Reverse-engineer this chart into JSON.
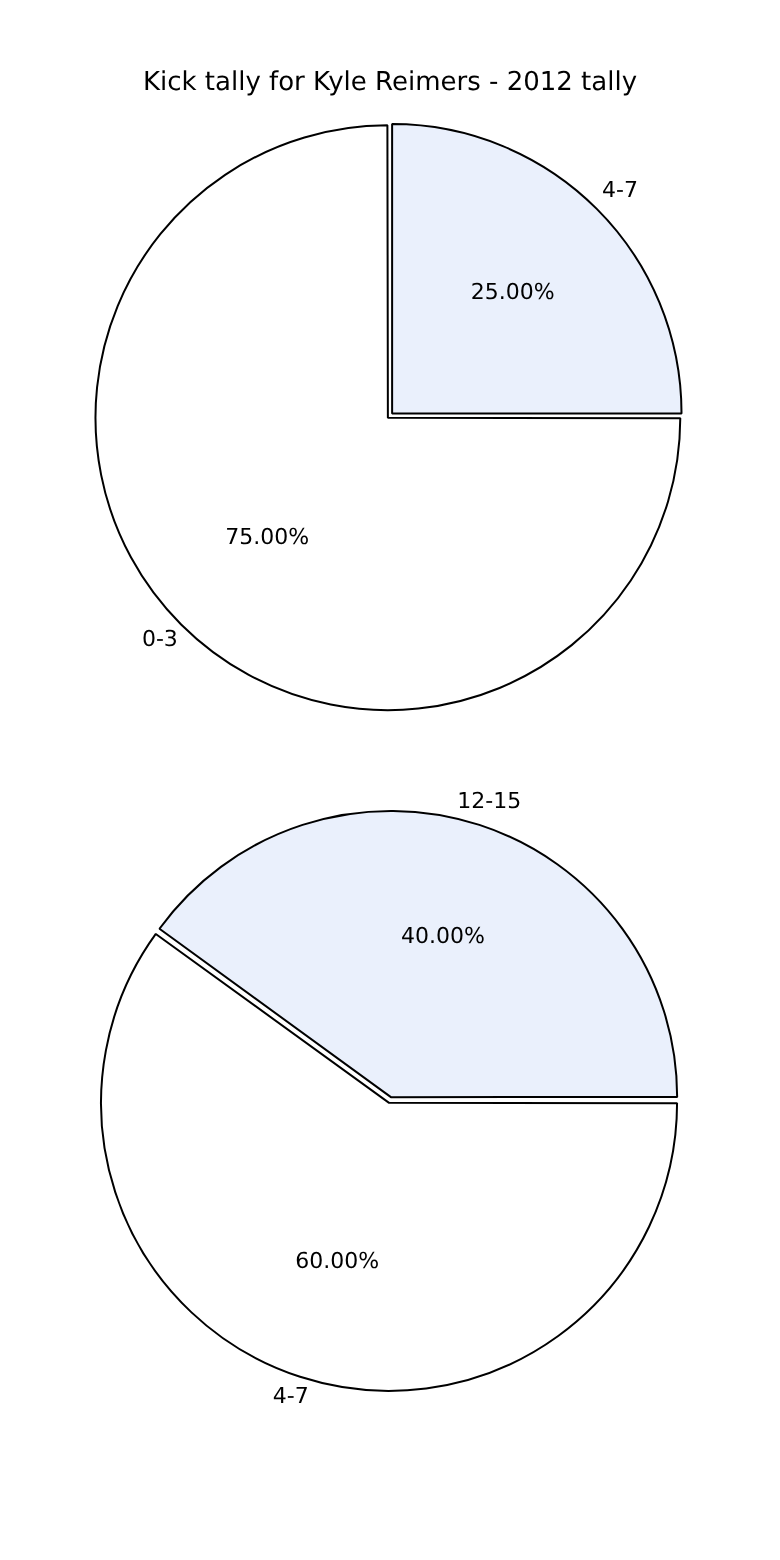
{
  "chart_data": [
    {
      "type": "pie",
      "title": "Kick tally for Kyle Reimers - 2012 tally",
      "categories": [
        "0-3",
        "4-7"
      ],
      "values": [
        75,
        25
      ],
      "colors": [
        "#ffffff",
        "#eaf0fc"
      ],
      "value_labels": [
        "75.00%",
        "25.00%"
      ]
    },
    {
      "type": "pie",
      "categories": [
        "4-7",
        "12-15"
      ],
      "values": [
        60,
        40
      ],
      "colors": [
        "#ffffff",
        "#eaf0fc"
      ],
      "value_labels": [
        "60.00%",
        "40.00%"
      ]
    }
  ]
}
